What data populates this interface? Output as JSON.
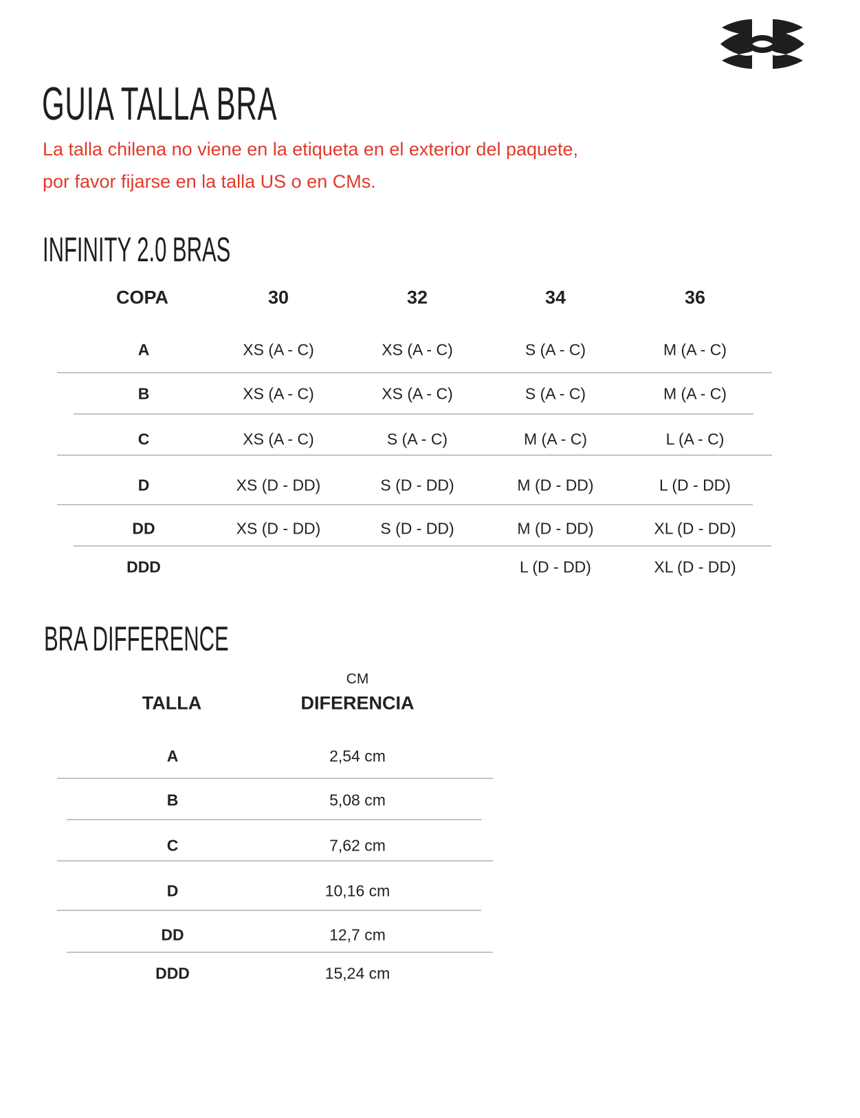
{
  "title": "GUIA TALLA BRA",
  "notice": [
    "La talla chilena no viene en la etiqueta en el exterior del paquete,",
    "por favor fijarse en la talla US o en CMs."
  ],
  "notice_color": "#e03a2a",
  "logo": {
    "name": "under-armour-logo",
    "text": "UA"
  },
  "infinity": {
    "heading": "INFINITY 2.0 BRAS",
    "headers": [
      "COPA",
      "30",
      "32",
      "34",
      "36"
    ],
    "rows": [
      [
        "A",
        "XS (A - C)",
        "XS (A - C)",
        "S (A - C)",
        "M (A - C)"
      ],
      [
        "B",
        "XS (A - C)",
        "XS (A - C)",
        "S (A - C)",
        "M (A - C)"
      ],
      [
        "C",
        "XS (A - C)",
        "S (A - C)",
        "M (A - C)",
        "L (A - C)"
      ],
      [
        "D",
        "XS (D - DD)",
        "S (D - DD)",
        "M (D - DD)",
        "L (D - DD)"
      ],
      [
        "DD",
        "XS (D - DD)",
        "S (D - DD)",
        "M (D - DD)",
        "XL (D - DD)"
      ],
      [
        "DDD",
        "",
        "",
        "L (D - DD)",
        "XL (D - DD)"
      ]
    ]
  },
  "difference": {
    "heading": "BRA DIFFERENCE",
    "unit_label": "CM",
    "headers": [
      "TALLA",
      "DIFERENCIA"
    ],
    "rows": [
      [
        "A",
        "2,54 cm"
      ],
      [
        "B",
        "5,08 cm"
      ],
      [
        "C",
        "7,62 cm"
      ],
      [
        "D",
        "10,16 cm"
      ],
      [
        "DD",
        "12,7 cm"
      ],
      [
        "DDD",
        "15,24 cm"
      ]
    ]
  }
}
